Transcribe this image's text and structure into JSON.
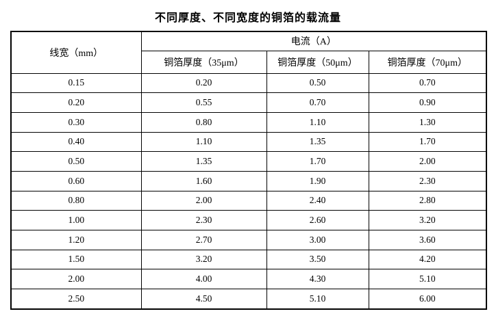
{
  "page": {
    "title": "不同厚度、不同宽度的铜箔的载流量"
  },
  "table": {
    "line_width_header": "线宽（mm）",
    "current_group_header": "电流（A）",
    "sub_headers": [
      "铜箔厚度（35μm）",
      "铜箔厚度（50μm）",
      "铜箔厚度（70μm）"
    ],
    "rows": [
      [
        "0.15",
        "0.20",
        "0.50",
        "0.70"
      ],
      [
        "0.20",
        "0.55",
        "0.70",
        "0.90"
      ],
      [
        "0.30",
        "0.80",
        "1.10",
        "1.30"
      ],
      [
        "0.40",
        "1.10",
        "1.35",
        "1.70"
      ],
      [
        "0.50",
        "1.35",
        "1.70",
        "2.00"
      ],
      [
        "0.60",
        "1.60",
        "1.90",
        "2.30"
      ],
      [
        "0.80",
        "2.00",
        "2.40",
        "2.80"
      ],
      [
        "1.00",
        "2.30",
        "2.60",
        "3.20"
      ],
      [
        "1.20",
        "2.70",
        "3.00",
        "3.60"
      ],
      [
        "1.50",
        "3.20",
        "3.50",
        "4.20"
      ],
      [
        "2.00",
        "4.00",
        "4.30",
        "5.10"
      ],
      [
        "2.50",
        "4.50",
        "5.10",
        "6.00"
      ]
    ]
  },
  "chart_data": {
    "type": "table",
    "title": "不同厚度、不同宽度的铜箔的载流量",
    "row_header": "线宽（mm）",
    "group_header": "电流（A）",
    "categories": [
      0.15,
      0.2,
      0.3,
      0.4,
      0.5,
      0.6,
      0.8,
      1.0,
      1.2,
      1.5,
      2.0,
      2.5
    ],
    "series": [
      {
        "name": "铜箔厚度（35μm）",
        "values": [
          0.2,
          0.55,
          0.8,
          1.1,
          1.35,
          1.6,
          2.0,
          2.3,
          2.7,
          3.2,
          4.0,
          4.5
        ]
      },
      {
        "name": "铜箔厚度（50μm）",
        "values": [
          0.5,
          0.7,
          1.1,
          1.35,
          1.7,
          1.9,
          2.4,
          2.6,
          3.0,
          3.5,
          4.3,
          5.1
        ]
      },
      {
        "name": "铜箔厚度（70μm）",
        "values": [
          0.7,
          0.9,
          1.3,
          1.7,
          2.0,
          2.3,
          2.8,
          3.2,
          3.6,
          4.2,
          5.1,
          6.0
        ]
      }
    ]
  }
}
